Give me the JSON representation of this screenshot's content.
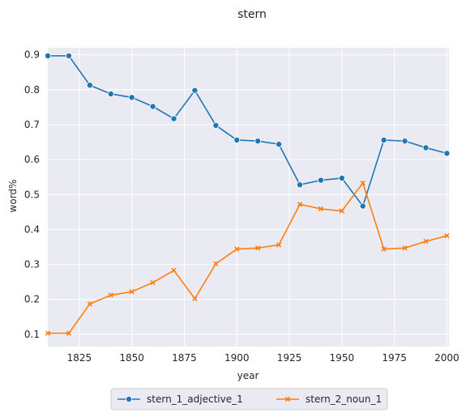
{
  "chart_data": {
    "type": "line",
    "title": "stern",
    "xlabel": "year",
    "ylabel": "word%",
    "xlim": [
      1810,
      2001
    ],
    "ylim": [
      0.065,
      0.92
    ],
    "xticks": [
      1825,
      1850,
      1875,
      1900,
      1925,
      1950,
      1975,
      2000
    ],
    "yticks": [
      0.1,
      0.2,
      0.3,
      0.4,
      0.5,
      0.6,
      0.7,
      0.8,
      0.9
    ],
    "grid": true,
    "background": "#eaeaf2",
    "legend_position": "bottom-center",
    "x": [
      1810,
      1820,
      1830,
      1840,
      1850,
      1860,
      1870,
      1880,
      1890,
      1900,
      1910,
      1920,
      1930,
      1940,
      1950,
      1960,
      1970,
      1980,
      1990,
      2000
    ],
    "series": [
      {
        "name": "stern_1_adjective_1",
        "color": "#1f77b4",
        "marker": "circle",
        "values": [
          0.897,
          0.897,
          0.813,
          0.788,
          0.778,
          0.752,
          0.717,
          0.798,
          0.698,
          0.656,
          0.653,
          0.644,
          0.528,
          0.541,
          0.547,
          0.467,
          0.656,
          0.653,
          0.634,
          0.618
        ]
      },
      {
        "name": "stern_2_noun_1",
        "color": "#ff7f0e",
        "marker": "x",
        "values": [
          0.103,
          0.103,
          0.187,
          0.212,
          0.222,
          0.248,
          0.283,
          0.202,
          0.302,
          0.344,
          0.347,
          0.356,
          0.472,
          0.459,
          0.453,
          0.533,
          0.344,
          0.347,
          0.366,
          0.382
        ]
      }
    ]
  }
}
